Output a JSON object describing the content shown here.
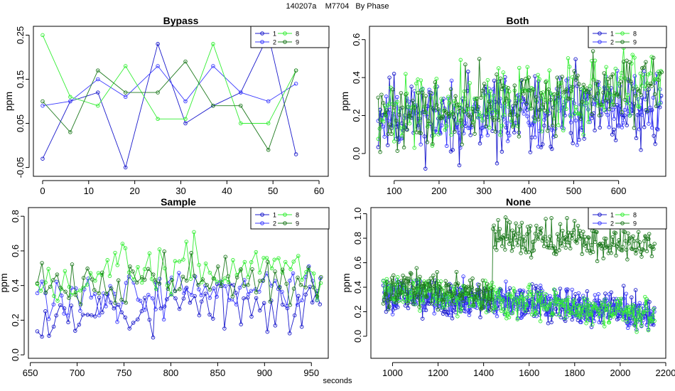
{
  "figure": {
    "title": "140207a    M7704   By Phase",
    "xlabel": "seconds",
    "ylabel": "ppm"
  },
  "colors": {
    "s1": "#1a1acc",
    "s2": "#3a3aff",
    "s8": "#33ee33",
    "s9": "#1f7a1f",
    "axis": "#000000"
  },
  "chart_data": [
    {
      "type": "line",
      "title": "Bypass",
      "xlabel": "",
      "ylabel": "ppm",
      "xlim": [
        -2,
        62
      ],
      "ylim": [
        -0.07,
        0.27
      ],
      "xticks": [
        0,
        10,
        20,
        30,
        40,
        50,
        60
      ],
      "yticks": [
        -0.05,
        0.05,
        0.15,
        0.25
      ],
      "legend": [
        "1",
        "2",
        "8",
        "9"
      ],
      "legend_position": "top-right",
      "series": [
        {
          "name": "1",
          "color": "#1a1acc",
          "x": [
            0,
            6,
            12,
            18,
            25,
            31,
            37,
            43,
            49,
            55
          ],
          "y": [
            -0.03,
            0.1,
            0.12,
            -0.05,
            0.23,
            0.05,
            0.09,
            0.12,
            0.25,
            -0.02
          ]
        },
        {
          "name": "2",
          "color": "#3a3aff",
          "x": [
            0,
            6,
            12,
            18,
            25,
            31,
            37,
            43,
            49,
            55
          ],
          "y": [
            0.09,
            0.1,
            0.15,
            0.11,
            0.18,
            0.1,
            0.18,
            0.12,
            0.1,
            0.14
          ]
        },
        {
          "name": "8",
          "color": "#33ee33",
          "x": [
            0,
            6,
            12,
            18,
            25,
            31,
            37,
            43,
            49,
            55
          ],
          "y": [
            0.25,
            0.11,
            0.09,
            0.18,
            0.06,
            0.06,
            0.23,
            0.05,
            0.05,
            0.17
          ]
        },
        {
          "name": "9",
          "color": "#1f7a1f",
          "x": [
            0,
            6,
            12,
            18,
            25,
            31,
            37,
            43,
            49,
            55
          ],
          "y": [
            0.1,
            0.03,
            0.17,
            0.12,
            0.12,
            0.19,
            0.09,
            0.09,
            -0.01,
            0.17
          ]
        }
      ]
    },
    {
      "type": "line",
      "title": "Both",
      "xlabel": "",
      "ylabel": "ppm",
      "xlim": [
        45,
        705
      ],
      "ylim": [
        -0.12,
        0.67
      ],
      "xticks": [
        100,
        200,
        300,
        400,
        500,
        600
      ],
      "yticks": [
        0.0,
        0.2,
        0.4,
        0.6
      ],
      "legend": [
        "1",
        "2",
        "8",
        "9"
      ],
      "legend_position": "top-right",
      "gen": {
        "x0": 65,
        "x1": 695,
        "n": 180,
        "series": [
          {
            "name": "1",
            "color": "#1a1acc",
            "base": [
              0.2,
              0.2
            ],
            "amp": 0.16,
            "seed": 11
          },
          {
            "name": "2",
            "color": "#3a3aff",
            "base": [
              0.18,
              0.26
            ],
            "amp": 0.13,
            "seed": 23
          },
          {
            "name": "8",
            "color": "#33ee33",
            "base": [
              0.2,
              0.34
            ],
            "amp": 0.14,
            "seed": 37
          },
          {
            "name": "9",
            "color": "#1f7a1f",
            "base": [
              0.19,
              0.36
            ],
            "amp": 0.14,
            "seed": 41
          }
        ]
      }
    },
    {
      "type": "line",
      "title": "Sample",
      "xlabel": "",
      "ylabel": "ppm",
      "xlim": [
        648,
        968
      ],
      "ylim": [
        -0.02,
        0.85
      ],
      "xticks": [
        650,
        700,
        750,
        800,
        850,
        900,
        950
      ],
      "yticks": [
        0.0,
        0.2,
        0.4,
        0.6,
        0.8
      ],
      "legend": [
        "1",
        "2",
        "8",
        "9"
      ],
      "legend_position": "top-right",
      "gen": {
        "x0": 658,
        "x1": 960,
        "n": 75,
        "series": [
          {
            "name": "1",
            "color": "#1a1acc",
            "base": [
              0.25,
              0.3
            ],
            "amp": 0.13,
            "seed": 53
          },
          {
            "name": "2",
            "color": "#3a3aff",
            "base": [
              0.33,
              0.4
            ],
            "amp": 0.1,
            "seed": 59
          },
          {
            "name": "8",
            "color": "#33ee33",
            "base": [
              0.46,
              0.5
            ],
            "amp": 0.13,
            "seed": 67
          },
          {
            "name": "9",
            "color": "#1f7a1f",
            "base": [
              0.42,
              0.44
            ],
            "amp": 0.1,
            "seed": 71
          }
        ]
      }
    },
    {
      "type": "line",
      "title": "None",
      "xlabel": "",
      "ylabel": "ppm",
      "xlim": [
        905,
        2200
      ],
      "ylim": [
        -0.18,
        1.05
      ],
      "xticks": [
        1000,
        1200,
        1400,
        1600,
        1800,
        2000,
        2200
      ],
      "yticks": [
        0.0,
        0.2,
        0.4,
        0.6,
        0.8,
        1.0
      ],
      "legend": [
        "1",
        "2",
        "8",
        "9"
      ],
      "legend_position": "top-right",
      "gen": {
        "x0": 960,
        "x1": 2150,
        "n": 320,
        "jump": 1440,
        "series": [
          {
            "name": "1",
            "color": "#1a1acc",
            "base": [
              0.35,
              0.18
            ],
            "amp": 0.11,
            "seed": 79
          },
          {
            "name": "2",
            "color": "#3a3aff",
            "base": [
              0.36,
              0.19
            ],
            "amp": 0.1,
            "seed": 83
          },
          {
            "name": "8",
            "color": "#33ee33",
            "base": [
              0.38,
              0.17
            ],
            "amp": 0.1,
            "seed": 89
          },
          {
            "name": "9",
            "color": "#1f7a1f",
            "base": [
              0.4,
              0.25
            ],
            "amp": 0.11,
            "seed": 97,
            "after": [
              0.82,
              0.74
            ]
          }
        ]
      }
    }
  ]
}
